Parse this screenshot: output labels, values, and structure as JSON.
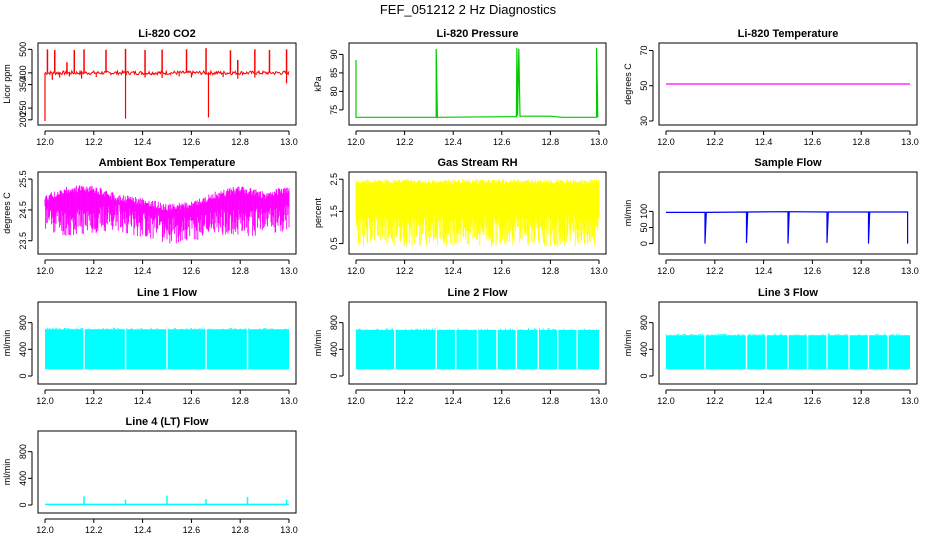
{
  "figure_title": "FEF_051212  2 Hz Diagnostics",
  "chart_data": [
    {
      "type": "line",
      "title": "Li-820 CO2",
      "ylabel": "Licor ppm",
      "color": "#ff0000",
      "xlim": [
        12.0,
        13.0
      ],
      "ylim": [
        195,
        510
      ],
      "x_ticks": [
        "12.0",
        "12.2",
        "12.4",
        "12.6",
        "12.8",
        "13.0"
      ],
      "y_ticks": [
        200,
        250,
        350,
        400,
        500
      ],
      "series": [
        {
          "baseline": 400,
          "band_low": 392,
          "band_high": 408,
          "up_spikes": [
            [
              12.01,
              500
            ],
            [
              12.04,
              497
            ],
            [
              12.09,
              445
            ],
            [
              12.12,
              497
            ],
            [
              12.16,
              500
            ],
            [
              12.25,
              498
            ],
            [
              12.33,
              502
            ],
            [
              12.41,
              497
            ],
            [
              12.48,
              499
            ],
            [
              12.58,
              500
            ],
            [
              12.66,
              505
            ],
            [
              12.76,
              496
            ],
            [
              12.79,
              455
            ],
            [
              12.86,
              500
            ],
            [
              12.92,
              497
            ],
            [
              12.99,
              500
            ]
          ],
          "down_spikes": [
            [
              12.0,
              195
            ],
            [
              12.03,
              370
            ],
            [
              12.06,
              380
            ],
            [
              12.1,
              385
            ],
            [
              12.15,
              375
            ],
            [
              12.21,
              382
            ],
            [
              12.33,
              205
            ],
            [
              12.41,
              380
            ],
            [
              12.48,
              378
            ],
            [
              12.55,
              385
            ],
            [
              12.6,
              380
            ],
            [
              12.67,
              210
            ],
            [
              12.73,
              382
            ],
            [
              12.79,
              375
            ],
            [
              12.86,
              380
            ],
            [
              12.99,
              355
            ]
          ]
        }
      ]
    },
    {
      "type": "line",
      "title": "Li-820 Pressure",
      "ylabel": "kPa",
      "color": "#00cc00",
      "xlim": [
        12.0,
        13.0
      ],
      "ylim": [
        72,
        92
      ],
      "x_ticks": [
        "12.0",
        "12.2",
        "12.4",
        "12.6",
        "12.8",
        "13.0"
      ],
      "y_ticks": [
        75,
        80,
        85,
        90
      ],
      "series": [
        {
          "points": [
            [
              12.0,
              88.5
            ],
            [
              12.0,
              73.0
            ],
            [
              12.33,
              73.0
            ],
            [
              12.33,
              91.5
            ],
            [
              12.335,
              73.0
            ],
            [
              12.66,
              73.2
            ],
            [
              12.662,
              91.8
            ],
            [
              12.665,
              73.4
            ],
            [
              12.67,
              91.5
            ],
            [
              12.675,
              73.3
            ],
            [
              12.8,
              73.3
            ],
            [
              12.85,
              73.0
            ],
            [
              12.99,
              73.0
            ],
            [
              12.99,
              91.8
            ],
            [
              12.995,
              73.0
            ]
          ]
        }
      ]
    },
    {
      "type": "line",
      "title": "Li-820 Temperature",
      "ylabel": "degrees C",
      "color": "#ff00ff",
      "xlim": [
        12.0,
        13.0
      ],
      "ylim": [
        30,
        72
      ],
      "x_ticks": [
        "12.0",
        "12.2",
        "12.4",
        "12.6",
        "12.8",
        "13.0"
      ],
      "y_ticks": [
        30,
        50,
        70
      ],
      "series": [
        {
          "points": [
            [
              12.0,
              51.0
            ],
            [
              13.0,
              51.0
            ]
          ]
        }
      ]
    },
    {
      "type": "line",
      "title": "Ambient Box Temperature",
      "ylabel": "degrees C",
      "color": "#ff00ff",
      "xlim": [
        12.0,
        13.0
      ],
      "ylim": [
        23.2,
        25.6
      ],
      "x_ticks": [
        "12.0",
        "12.2",
        "12.4",
        "12.6",
        "12.8",
        "13.0"
      ],
      "y_ticks": [
        23.5,
        24.5,
        25.5
      ],
      "series": [
        {
          "high_profile": [
            [
              12.0,
              25.0
            ],
            [
              12.1,
              25.3
            ],
            [
              12.2,
              25.3
            ],
            [
              12.3,
              25.0
            ],
            [
              12.4,
              24.9
            ],
            [
              12.5,
              24.7
            ],
            [
              12.6,
              24.8
            ],
            [
              12.7,
              25.1
            ],
            [
              12.8,
              25.3
            ],
            [
              12.9,
              25.1
            ],
            [
              13.0,
              25.3
            ]
          ],
          "low_profile": [
            [
              12.0,
              23.8
            ],
            [
              12.1,
              23.6
            ],
            [
              12.2,
              23.7
            ],
            [
              12.3,
              23.8
            ],
            [
              12.4,
              23.6
            ],
            [
              12.5,
              23.4
            ],
            [
              12.6,
              23.4
            ],
            [
              12.7,
              23.7
            ],
            [
              12.8,
              23.6
            ],
            [
              12.9,
              23.7
            ],
            [
              13.0,
              23.8
            ]
          ]
        }
      ]
    },
    {
      "type": "line",
      "title": "Gas Stream RH",
      "ylabel": "percent",
      "color": "#ffff00",
      "xlim": [
        12.0,
        13.0
      ],
      "ylim": [
        0.3,
        2.6
      ],
      "x_ticks": [
        "12.0",
        "12.2",
        "12.4",
        "12.6",
        "12.8",
        "13.0"
      ],
      "y_ticks": [
        0.5,
        1.5,
        2.5
      ],
      "series": [
        {
          "high": 2.5,
          "low": 0.4
        }
      ]
    },
    {
      "type": "line",
      "title": "Sample Flow",
      "ylabel": "ml/min",
      "color": "#0000ff",
      "xlim": [
        12.0,
        13.0
      ],
      "ylim": [
        -20,
        210
      ],
      "x_ticks": [
        "12.0",
        "12.2",
        "12.4",
        "12.6",
        "12.8",
        "13.0"
      ],
      "y_ticks": [
        0,
        50,
        100
      ],
      "series": [
        {
          "points": [
            [
              12.0,
              97
            ],
            [
              12.16,
              97
            ],
            [
              12.16,
              0
            ],
            [
              12.165,
              97
            ],
            [
              12.33,
              98
            ],
            [
              12.33,
              2
            ],
            [
              12.335,
              98
            ],
            [
              12.5,
              99
            ],
            [
              12.5,
              0
            ],
            [
              12.505,
              99
            ],
            [
              12.66,
              98
            ],
            [
              12.66,
              2
            ],
            [
              12.665,
              98
            ],
            [
              12.83,
              98
            ],
            [
              12.83,
              0
            ],
            [
              12.835,
              98
            ],
            [
              12.99,
              98
            ],
            [
              12.99,
              0
            ]
          ]
        }
      ]
    },
    {
      "type": "area",
      "title": "Line 1 Flow",
      "ylabel": "ml/min",
      "color": "#00ffff",
      "xlim": [
        12.0,
        13.0
      ],
      "ylim": [
        -60,
        1050
      ],
      "x_ticks": [
        "12.0",
        "12.2",
        "12.4",
        "12.6",
        "12.8",
        "13.0"
      ],
      "y_ticks": [
        0,
        400,
        800
      ],
      "series": [
        {
          "high": 700,
          "low": 100,
          "gaps": [
            12.16,
            12.33,
            12.5,
            12.66,
            12.83
          ]
        }
      ]
    },
    {
      "type": "area",
      "title": "Line 2 Flow",
      "ylabel": "ml/min",
      "color": "#00ffff",
      "xlim": [
        12.0,
        13.0
      ],
      "ylim": [
        -60,
        1050
      ],
      "x_ticks": [
        "12.0",
        "12.2",
        "12.4",
        "12.6",
        "12.8",
        "13.0"
      ],
      "y_ticks": [
        0,
        400,
        800
      ],
      "series": [
        {
          "high": 690,
          "low": 100,
          "gaps": [
            12.16,
            12.33,
            12.41,
            12.5,
            12.58,
            12.66,
            12.75,
            12.83,
            12.91
          ]
        }
      ]
    },
    {
      "type": "area",
      "title": "Line 3 Flow",
      "ylabel": "ml/min",
      "color": "#00ffff",
      "xlim": [
        12.0,
        13.0
      ],
      "ylim": [
        -60,
        1050
      ],
      "x_ticks": [
        "12.0",
        "12.2",
        "12.4",
        "12.6",
        "12.8",
        "13.0"
      ],
      "y_ticks": [
        0,
        400,
        800
      ],
      "series": [
        {
          "high": 610,
          "low": 100,
          "gaps": [
            12.16,
            12.33,
            12.41,
            12.5,
            12.58,
            12.66,
            12.75,
            12.83,
            12.91
          ]
        }
      ]
    },
    {
      "type": "line",
      "title": "Line 4 (LT) Flow",
      "ylabel": "ml/min",
      "color": "#00ffff",
      "xlim": [
        12.0,
        13.0
      ],
      "ylim": [
        -60,
        1050
      ],
      "x_ticks": [
        "12.0",
        "12.2",
        "12.4",
        "12.6",
        "12.8",
        "13.0"
      ],
      "y_ticks": [
        0,
        400,
        800
      ],
      "series": [
        {
          "baseline": 10,
          "spikes": [
            [
              12.16,
              130
            ],
            [
              12.33,
              80
            ],
            [
              12.5,
              140
            ],
            [
              12.66,
              90
            ],
            [
              12.83,
              120
            ],
            [
              12.99,
              80
            ]
          ]
        }
      ]
    }
  ]
}
